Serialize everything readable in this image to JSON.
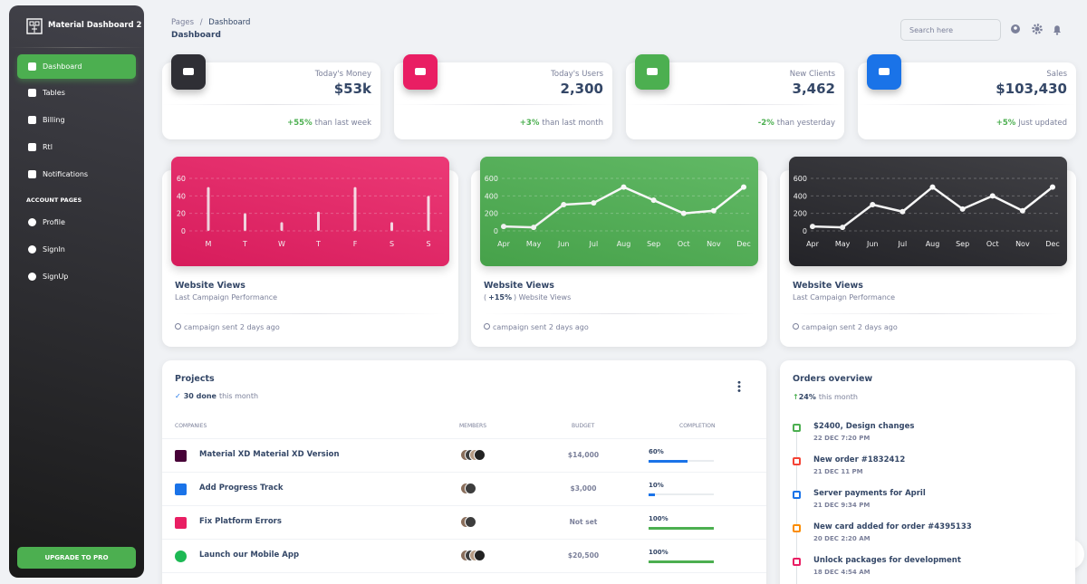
{
  "sidebar": {
    "brand": "Material Dashboard 2",
    "nav": [
      "Dashboard",
      "Tables",
      "Billing",
      "Rtl",
      "Notifications"
    ],
    "section": "ACCOUNT PAGES",
    "account": [
      "Profile",
      "SignIn",
      "SignUp"
    ],
    "button": "UPGRADE TO PRO"
  },
  "header": {
    "breadcrumb": [
      "Pages",
      "Dashboard"
    ],
    "separator": "/",
    "title": "Dashboard",
    "search": "Search here"
  },
  "stats": [
    {
      "label": "Today's Money",
      "value": "$53k",
      "change": "+55%",
      "note": "than last week",
      "color": "#2f2f35"
    },
    {
      "label": "Today's Users",
      "value": "2,300",
      "change": "+3%",
      "note": "than last month",
      "color": "#e91e63"
    },
    {
      "label": "New Clients",
      "value": "3,462",
      "change": "-2%",
      "note": "than yesterday",
      "color": "#4caf50"
    },
    {
      "label": "Sales",
      "value": "$103,430",
      "change": "+5%",
      "note": "Just updated",
      "color": "#1a73e8"
    }
  ],
  "charts": [
    {
      "type": "bar",
      "color": "#e91e63",
      "title": "Website Views",
      "subtitle": [
        "Last Campaign Performance"
      ],
      "footer": "campaign sent 2 days ago",
      "categories": [
        "M",
        "T",
        "W",
        "T",
        "F",
        "S",
        "S"
      ],
      "values": [
        50,
        20,
        10,
        22,
        50,
        10,
        40
      ],
      "ylim": [
        0,
        60
      ],
      "yticks": [
        0,
        20,
        40,
        60
      ],
      "grid": true
    },
    {
      "type": "line",
      "color": "#4caf50",
      "title": "Website Views",
      "subtitle": [
        "(",
        "+15%",
        ") Website Views"
      ],
      "footer": "campaign sent 2 days ago",
      "categories": [
        "Apr",
        "May",
        "Jun",
        "Jul",
        "Aug",
        "Sep",
        "Oct",
        "Nov",
        "Dec"
      ],
      "values": [
        50,
        40,
        300,
        320,
        500,
        350,
        200,
        230,
        500
      ],
      "ylim": [
        0,
        600
      ],
      "yticks": [
        0,
        200,
        400,
        600
      ],
      "grid": true
    },
    {
      "type": "line",
      "color": "#26262b",
      "title": "Website Views",
      "subtitle": [
        "Last Campaign Performance"
      ],
      "footer": "campaign sent 2 days ago",
      "categories": [
        "Apr",
        "May",
        "Jun",
        "Jul",
        "Aug",
        "Sep",
        "Oct",
        "Nov",
        "Dec"
      ],
      "values": [
        50,
        40,
        300,
        220,
        500,
        250,
        400,
        230,
        500
      ],
      "ylim": [
        0,
        600
      ],
      "yticks": [
        0,
        200,
        400,
        600
      ],
      "grid": true
    }
  ],
  "projects": {
    "title": "Projects",
    "done": "30 done",
    "period": "this month",
    "columns": [
      "COMPANIES",
      "MEMBERS",
      "BUDGET",
      "COMPLETION"
    ],
    "rows": [
      {
        "name": "Material XD Material XD Version",
        "budget": "$14,000",
        "completion": {
          "value": 60,
          "label": "60%"
        },
        "color": "#470137",
        "members": 4
      },
      {
        "name": "Add Progress Track",
        "budget": "$3,000",
        "completion": {
          "value": 10,
          "label": "10%"
        },
        "color": "#1a73e8",
        "members": 2
      },
      {
        "name": "Fix Platform Errors",
        "budget": "Not set",
        "completion": {
          "value": 100,
          "label": "100%"
        },
        "color": "#e91e63",
        "members": 2
      },
      {
        "name": "Launch our Mobile App",
        "budget": "$20,500",
        "completion": {
          "value": 100,
          "label": "100%"
        },
        "color": "#1db954",
        "members": 4
      }
    ]
  },
  "orders": {
    "title": "Orders overview",
    "change": "24%",
    "period": "this month",
    "items": [
      {
        "title": "$2400, Design changes",
        "date": "22 DEC 7:20 PM",
        "color": "#4caf50"
      },
      {
        "title": "New order #1832412",
        "date": "21 DEC 11 PM",
        "color": "#f44335"
      },
      {
        "title": "Server payments for April",
        "date": "21 DEC 9:34 PM",
        "color": "#1a73e8"
      },
      {
        "title": "New card added for order #4395133",
        "date": "20 DEC 2:20 AM",
        "color": "#fb8c00"
      },
      {
        "title": "Unlock packages for development",
        "date": "18 DEC 4:54 AM",
        "color": "#e91e63"
      }
    ]
  }
}
